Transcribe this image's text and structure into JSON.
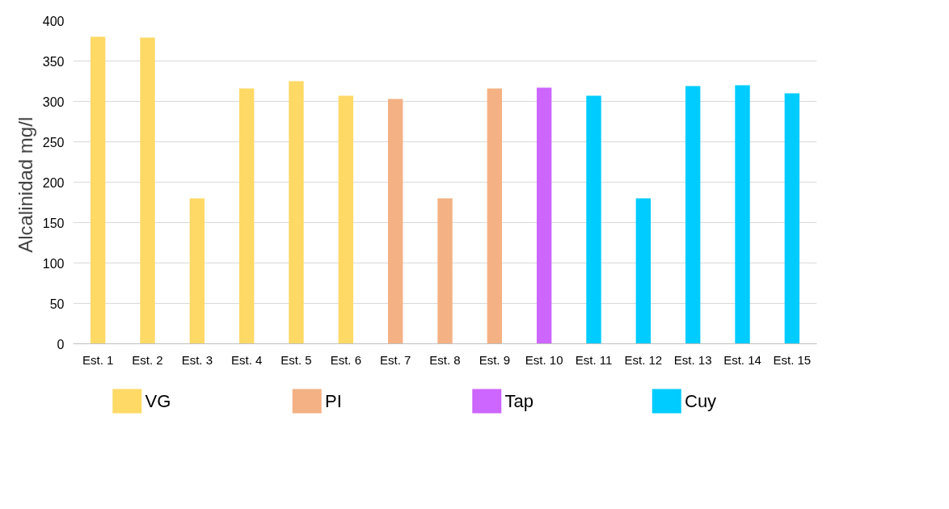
{
  "chart_data": {
    "type": "bar",
    "ylabel": "Alcalinidad  mg/l",
    "categories": [
      "Est. 1",
      "Est. 2",
      "Est. 3",
      "Est. 4",
      "Est. 5",
      "Est. 6",
      "Est. 7",
      "Est. 8",
      "Est. 9",
      "Est. 10",
      "Est. 11",
      "Est. 12",
      "Est. 13",
      "Est. 14",
      "Est. 15"
    ],
    "series": [
      {
        "name": "VG",
        "color": "#ffd966",
        "values": [
          380,
          379,
          180,
          316,
          325,
          307,
          null,
          null,
          null,
          null,
          null,
          null,
          null,
          null,
          null
        ]
      },
      {
        "name": "PI",
        "color": "#f4b183",
        "values": [
          null,
          null,
          null,
          null,
          null,
          null,
          303,
          180,
          316,
          null,
          null,
          null,
          null,
          null,
          null
        ]
      },
      {
        "name": "Tap",
        "color": "#cc66ff",
        "values": [
          null,
          null,
          null,
          null,
          null,
          null,
          null,
          null,
          null,
          317,
          null,
          null,
          null,
          null,
          null
        ]
      },
      {
        "name": "Cuy",
        "color": "#00ccff",
        "values": [
          null,
          null,
          null,
          null,
          null,
          null,
          null,
          null,
          null,
          null,
          307,
          180,
          319,
          320,
          310
        ]
      }
    ],
    "ylim": [
      0,
      400
    ],
    "yticks": [
      0,
      50,
      100,
      150,
      200,
      250,
      300,
      350,
      400
    ],
    "grid": "y",
    "legend": "bottom"
  }
}
